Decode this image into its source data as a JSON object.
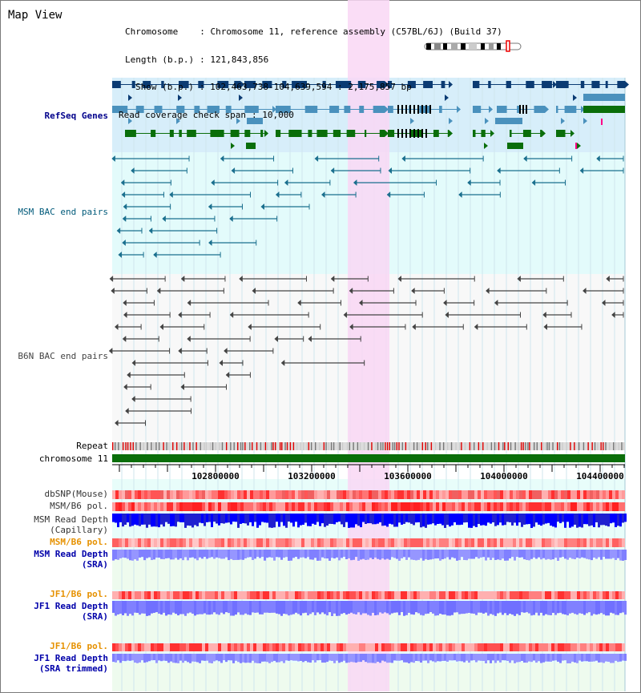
{
  "app_title": "Map View",
  "info": {
    "chromosome_label": "Chromosome",
    "chromosome_value": ": Chromosome 11, reference assembly (C57BL/6J) (Build 37)",
    "length_label": "Length (b.p.)",
    "length_value": ": 121,843,856",
    "show_label": "Show (b.p.)",
    "show_value": ": 102,463,738-104,639,594 : 2,175,857 bp",
    "coverage_label": "Read coverage check span",
    "coverage_value": ": 10,000"
  },
  "tracks": {
    "refseq": "RefSeq Genes",
    "msm_bac": "MSM BAC end pairs",
    "b6n_bac": "B6N BAC end pairs",
    "repeat": "Repeat",
    "chromosome": "chromosome 11",
    "dbsnp": "dbSNP(Mouse)",
    "msm_pol1": "MSM/B6 pol.",
    "msm_depth_cap1": "MSM Read Depth",
    "msm_depth_cap2": "(Capillary)",
    "msm_pol2": "MSM/B6 pol.",
    "msm_depth_sra1": "MSM Read Depth",
    "msm_depth_sra2": "(SRA)",
    "jf1_pol1": "JF1/B6 pol.",
    "jf1_depth1": "JF1 Read Depth",
    "jf1_depth1b": "(SRA)",
    "jf1_pol2": "JF1/B6 pol.",
    "jf1_depth2": "JF1 Read Depth",
    "jf1_depth2b": "(SRA trimmed)"
  },
  "axis": {
    "ticks": [
      "102800000",
      "103200000",
      "103600000",
      "104000000",
      "104400000"
    ]
  },
  "colors": {
    "highlight": "#f9d7f4",
    "refseq_bg": "#d7eefa",
    "bac_bg": "#e3fbfb",
    "gene_dark": "#0b3b73",
    "gene_mid": "#4a91bd",
    "gene_green": "#0a6e0a",
    "bac_line": "#1a6f8e",
    "b6n_line": "#444444",
    "chromosome_bar": "#0a6e0a",
    "orange_label": "#e69100",
    "blue_label": "#0000aa",
    "refseq_label": "#00008b",
    "bac_label": "#005a7a"
  }
}
